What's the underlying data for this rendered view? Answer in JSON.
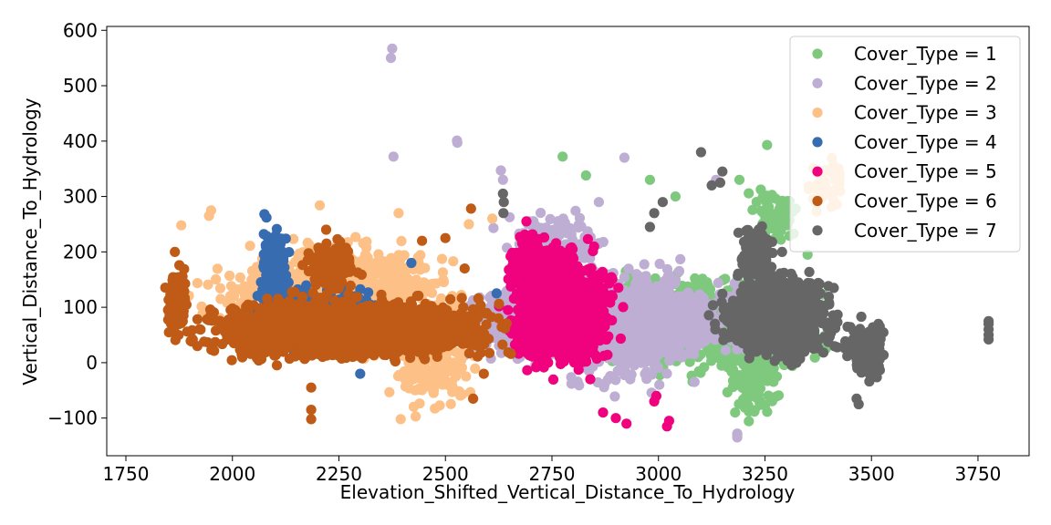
{
  "chart_data": {
    "type": "scatter",
    "title": "",
    "xlabel": "Elevation_Shifted_Vertical_Distance_To_Hydrology",
    "ylabel": "Vertical_Distance_To_Hydrology",
    "xlim": [
      1705,
      3870
    ],
    "ylim": [
      -168,
      607
    ],
    "x_ticks": [
      1750,
      2000,
      2250,
      2500,
      2750,
      3000,
      3250,
      3500,
      3750
    ],
    "x_tick_labels": [
      "1750",
      "2000",
      "2250",
      "2500",
      "2750",
      "3000",
      "3250",
      "3500",
      "3750"
    ],
    "y_ticks": [
      -100,
      0,
      100,
      200,
      300,
      400,
      500,
      600
    ],
    "y_tick_labels": [
      "−100",
      "0",
      "100",
      "200",
      "300",
      "400",
      "500",
      "600"
    ],
    "grid": false,
    "legend_position": "top-right",
    "series": [
      {
        "name": "Cover_Type = 1",
        "color": "#7fc97f",
        "clusters": [
          {
            "x": [
              2750,
              3450
            ],
            "y": [
              -40,
              180
            ],
            "n": 700
          },
          {
            "x": [
              3150,
              3300
            ],
            "y": [
              -120,
              60
            ],
            "n": 120
          },
          {
            "x": [
              3200,
              3350
            ],
            "y": [
              200,
              330
            ],
            "n": 60
          }
        ],
        "points": [
          {
            "x": 2775,
            "y": 372
          },
          {
            "x": 3255,
            "y": 393
          },
          {
            "x": 2830,
            "y": 338
          },
          {
            "x": 3190,
            "y": 330
          },
          {
            "x": 3040,
            "y": 300
          },
          {
            "x": 3275,
            "y": 296
          },
          {
            "x": 3285,
            "y": 238
          },
          {
            "x": 3350,
            "y": 195
          },
          {
            "x": 3185,
            "y": -130
          },
          {
            "x": 3180,
            "y": -90
          },
          {
            "x": 2980,
            "y": 330
          }
        ]
      },
      {
        "name": "Cover_Type = 2",
        "color": "#beaed4",
        "clusters": [
          {
            "x": [
              2450,
              3300
            ],
            "y": [
              -10,
              160
            ],
            "n": 1500
          },
          {
            "x": [
              2700,
              3150
            ],
            "y": [
              -80,
              220
            ],
            "n": 500
          },
          {
            "x": [
              2600,
              2900
            ],
            "y": [
              150,
              300
            ],
            "n": 100
          }
        ],
        "points": [
          {
            "x": 2375,
            "y": 567
          },
          {
            "x": 2372,
            "y": 550
          },
          {
            "x": 2378,
            "y": 372
          },
          {
            "x": 2527,
            "y": 401
          },
          {
            "x": 2528,
            "y": 397
          },
          {
            "x": 2920,
            "y": 370
          },
          {
            "x": 2630,
            "y": 347
          },
          {
            "x": 2635,
            "y": 330
          },
          {
            "x": 3185,
            "y": -135
          },
          {
            "x": 3185,
            "y": -128
          },
          {
            "x": 2860,
            "y": 290
          },
          {
            "x": 3135,
            "y": 330
          }
        ]
      },
      {
        "name": "Cover_Type = 3",
        "color": "#fdc086",
        "clusters": [
          {
            "x": [
              1880,
              2600
            ],
            "y": [
              0,
              240
            ],
            "n": 1000
          },
          {
            "x": [
              2350,
              2600
            ],
            "y": [
              -100,
              60
            ],
            "n": 120
          },
          {
            "x": [
              3330,
              3460
            ],
            "y": [
              250,
              405
            ],
            "n": 40
          }
        ],
        "points": [
          {
            "x": 1950,
            "y": 275
          },
          {
            "x": 1945,
            "y": 265
          },
          {
            "x": 2205,
            "y": 284
          },
          {
            "x": 2395,
            "y": -102
          },
          {
            "x": 2430,
            "y": -97
          },
          {
            "x": 2390,
            "y": 270
          },
          {
            "x": 2610,
            "y": 260
          },
          {
            "x": 2555,
            "y": 250
          },
          {
            "x": 1880,
            "y": 248
          }
        ]
      },
      {
        "name": "Cover_Type = 4",
        "color": "#386cb0",
        "clusters": [
          {
            "x": [
              2000,
              2420
            ],
            "y": [
              0,
              150
            ],
            "n": 800
          },
          {
            "x": [
              2060,
              2140
            ],
            "y": [
              80,
              265
            ],
            "n": 220
          }
        ],
        "points": [
          {
            "x": 2075,
            "y": 268
          },
          {
            "x": 2080,
            "y": 262
          },
          {
            "x": 2620,
            "y": 125
          },
          {
            "x": 2300,
            "y": -20
          },
          {
            "x": 2420,
            "y": 180
          }
        ]
      },
      {
        "name": "Cover_Type = 5",
        "color": "#f0027f",
        "clusters": [
          {
            "x": [
              2610,
              2930
            ],
            "y": [
              -40,
              240
            ],
            "n": 900
          },
          {
            "x": [
              2640,
              2760
            ],
            "y": [
              120,
              245
            ],
            "n": 200
          }
        ],
        "points": [
          {
            "x": 2870,
            "y": -90
          },
          {
            "x": 2900,
            "y": -100
          },
          {
            "x": 2925,
            "y": -110
          },
          {
            "x": 3020,
            "y": -115
          },
          {
            "x": 3025,
            "y": -105
          },
          {
            "x": 2990,
            "y": -70
          },
          {
            "x": 2995,
            "y": -60
          },
          {
            "x": 2840,
            "y": -30
          },
          {
            "x": 2690,
            "y": 255
          }
        ]
      },
      {
        "name": "Cover_Type = 6",
        "color": "#bf5b17",
        "clusters": [
          {
            "x": [
              1840,
              2700
            ],
            "y": [
              -10,
              130
            ],
            "n": 1800
          },
          {
            "x": [
              1840,
              1900
            ],
            "y": [
              30,
              200
            ],
            "n": 120
          },
          {
            "x": [
              2150,
              2320
            ],
            "y": [
              100,
              230
            ],
            "n": 150
          }
        ],
        "points": [
          {
            "x": 2560,
            "y": 278
          },
          {
            "x": 2185,
            "y": -45
          },
          {
            "x": 2185,
            "y": -85
          },
          {
            "x": 2185,
            "y": -102
          },
          {
            "x": 2500,
            "y": 225
          },
          {
            "x": 2565,
            "y": -65
          },
          {
            "x": 2445,
            "y": 220
          },
          {
            "x": 2220,
            "y": 240
          },
          {
            "x": 1865,
            "y": 200
          },
          {
            "x": 2545,
            "y": 170
          },
          {
            "x": 2590,
            "y": -20
          }
        ]
      },
      {
        "name": "Cover_Type = 7",
        "color": "#666666",
        "clusters": [
          {
            "x": [
              3110,
              3450
            ],
            "y": [
              -10,
              180
            ],
            "n": 900
          },
          {
            "x": [
              3180,
              3280
            ],
            "y": [
              120,
              260
            ],
            "n": 150
          },
          {
            "x": [
              3420,
              3560
            ],
            "y": [
              -50,
              100
            ],
            "n": 120
          }
        ],
        "points": [
          {
            "x": 3775,
            "y": 70
          },
          {
            "x": 3775,
            "y": 60
          },
          {
            "x": 3775,
            "y": 50
          },
          {
            "x": 3775,
            "y": 42
          },
          {
            "x": 3775,
            "y": 75
          },
          {
            "x": 3150,
            "y": 345
          },
          {
            "x": 3145,
            "y": 325
          },
          {
            "x": 3125,
            "y": 320
          },
          {
            "x": 2635,
            "y": 305
          },
          {
            "x": 2637,
            "y": 290
          },
          {
            "x": 2636,
            "y": 270
          },
          {
            "x": 3010,
            "y": 290
          },
          {
            "x": 2990,
            "y": 270
          },
          {
            "x": 2980,
            "y": 245
          },
          {
            "x": 3465,
            "y": -65
          },
          {
            "x": 3470,
            "y": -75
          },
          {
            "x": 3100,
            "y": 380
          },
          {
            "x": 3290,
            "y": 200
          }
        ]
      }
    ]
  }
}
